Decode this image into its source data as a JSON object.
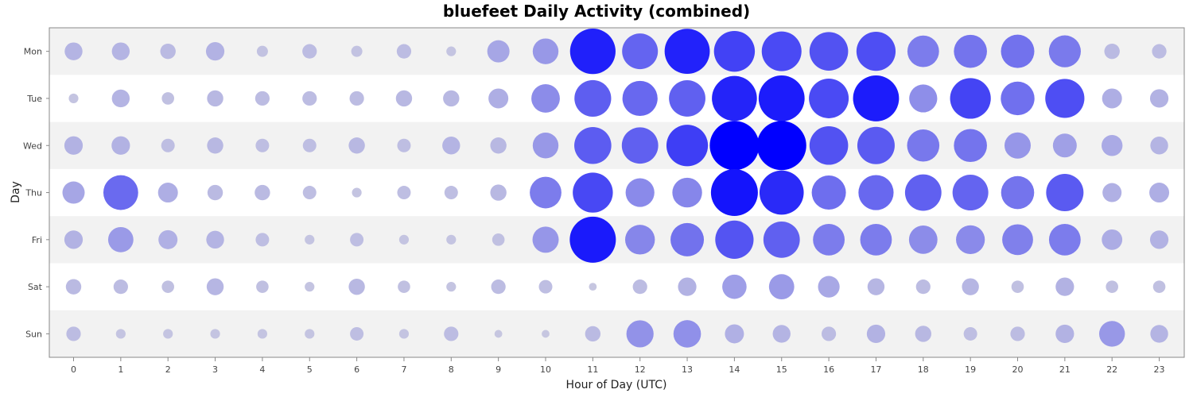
{
  "chart_data": {
    "type": "scatter",
    "title": "bluefeet Daily Activity (combined)",
    "xlabel": "Hour of Day (UTC)",
    "ylabel": "Day",
    "x_categories": [
      "0",
      "1",
      "2",
      "3",
      "4",
      "5",
      "6",
      "7",
      "8",
      "9",
      "10",
      "11",
      "12",
      "13",
      "14",
      "15",
      "16",
      "17",
      "18",
      "19",
      "20",
      "21",
      "22",
      "23"
    ],
    "y_categories": [
      "Mon",
      "Tue",
      "Wed",
      "Thu",
      "Fri",
      "Sat",
      "Sun"
    ],
    "value_description": "relative activity level (0-1), shown by bubble size and color intensity",
    "min_color": "#c8c8e0",
    "max_color": "#0000ff",
    "band_color": "#f2f2f2",
    "grid": true,
    "series": [
      {
        "day": "Mon",
        "values": [
          0.1,
          0.1,
          0.07,
          0.11,
          0.03,
          0.06,
          0.03,
          0.06,
          0.02,
          0.17,
          0.24,
          0.84,
          0.5,
          0.83,
          0.67,
          0.63,
          0.59,
          0.61,
          0.38,
          0.42,
          0.43,
          0.39,
          0.07,
          0.06
        ]
      },
      {
        "day": "Tue",
        "values": [
          0.02,
          0.1,
          0.04,
          0.08,
          0.06,
          0.06,
          0.06,
          0.08,
          0.08,
          0.13,
          0.3,
          0.53,
          0.48,
          0.52,
          0.82,
          0.86,
          0.63,
          0.86,
          0.29,
          0.66,
          0.44,
          0.61,
          0.13,
          0.11
        ]
      },
      {
        "day": "Wed",
        "values": [
          0.11,
          0.11,
          0.05,
          0.08,
          0.05,
          0.05,
          0.08,
          0.05,
          0.1,
          0.08,
          0.24,
          0.54,
          0.52,
          0.69,
          1.0,
          1.0,
          0.59,
          0.55,
          0.4,
          0.42,
          0.25,
          0.2,
          0.15,
          0.1
        ]
      },
      {
        "day": "Thu",
        "values": [
          0.17,
          0.47,
          0.13,
          0.07,
          0.07,
          0.05,
          0.02,
          0.05,
          0.05,
          0.08,
          0.38,
          0.64,
          0.31,
          0.33,
          0.9,
          0.79,
          0.45,
          0.48,
          0.52,
          0.5,
          0.42,
          0.55,
          0.12,
          0.13
        ]
      },
      {
        "day": "Fri",
        "values": [
          0.11,
          0.23,
          0.12,
          0.1,
          0.05,
          0.02,
          0.05,
          0.02,
          0.02,
          0.04,
          0.25,
          0.87,
          0.33,
          0.43,
          0.58,
          0.52,
          0.38,
          0.38,
          0.3,
          0.31,
          0.36,
          0.38,
          0.14,
          0.11
        ]
      },
      {
        "day": "Sat",
        "values": [
          0.07,
          0.06,
          0.04,
          0.09,
          0.04,
          0.02,
          0.08,
          0.04,
          0.02,
          0.06,
          0.05,
          0.01,
          0.06,
          0.11,
          0.21,
          0.23,
          0.16,
          0.09,
          0.06,
          0.09,
          0.04,
          0.11,
          0.04,
          0.04
        ]
      },
      {
        "day": "Sun",
        "values": [
          0.06,
          0.02,
          0.02,
          0.02,
          0.02,
          0.02,
          0.05,
          0.02,
          0.06,
          0.01,
          0.01,
          0.07,
          0.27,
          0.28,
          0.12,
          0.1,
          0.06,
          0.11,
          0.08,
          0.05,
          0.06,
          0.11,
          0.24,
          0.1
        ]
      }
    ]
  }
}
